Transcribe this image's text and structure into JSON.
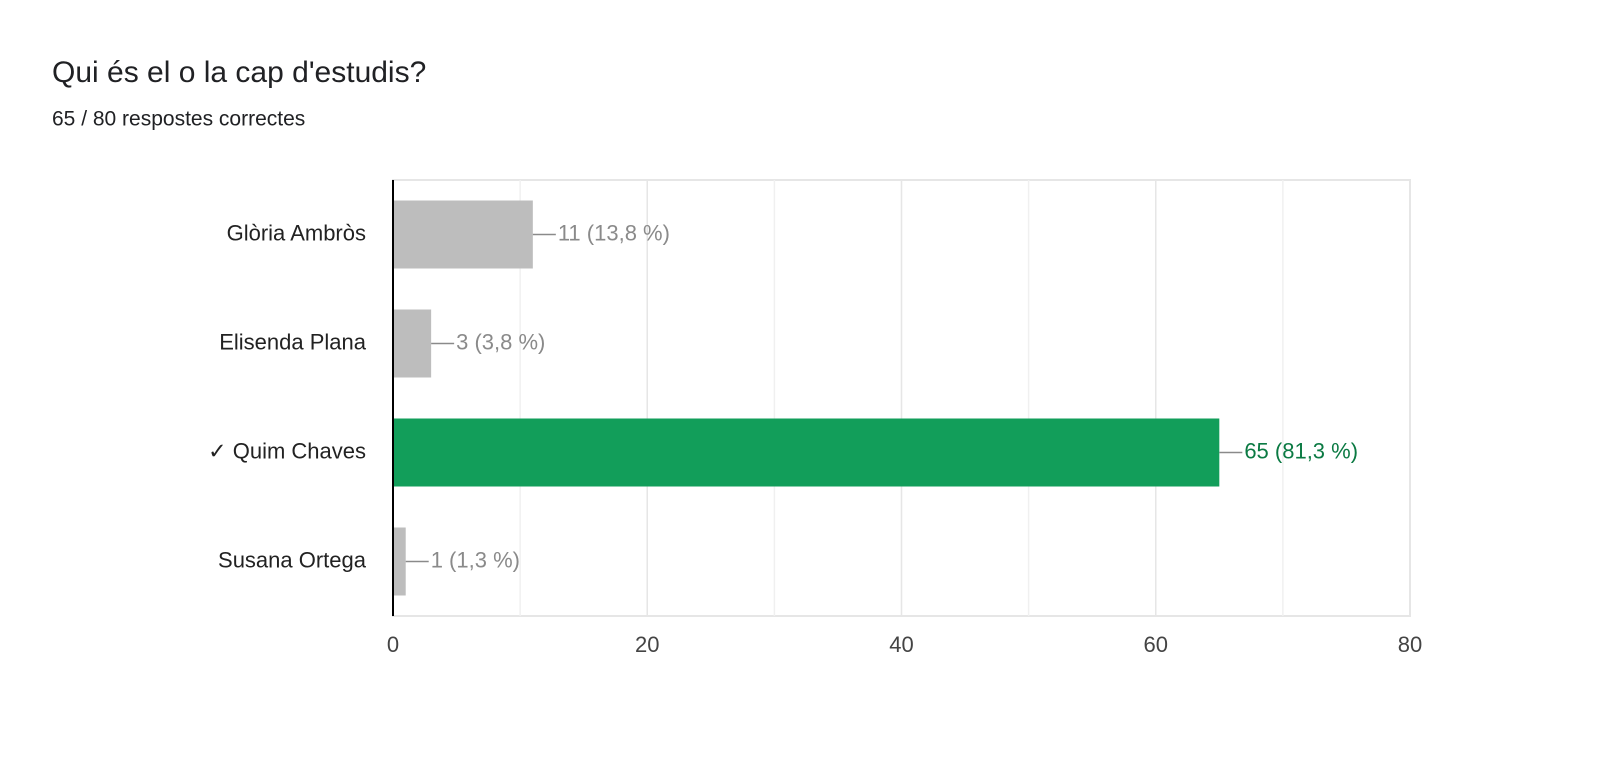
{
  "chart_data": {
    "type": "bar",
    "orientation": "horizontal",
    "title": "Qui és el o la cap d'estudis?",
    "subtitle": "65 / 80 respostes correctes",
    "categories": [
      "Glòria Ambròs",
      "Elisenda Plana",
      "✓ Quim Chaves",
      "Susana Ortega"
    ],
    "values": [
      11,
      3,
      65,
      1
    ],
    "value_labels": [
      "11 (13,8 %)",
      "3 (3,8 %)",
      "65 (81,3 %)",
      "1 (1,3 %)"
    ],
    "colors": [
      "#bdbdbd",
      "#bdbdbd",
      "#129e5a",
      "#bdbdbd"
    ],
    "label_colors": [
      "#8a8a8a",
      "#8a8a8a",
      "#0b7a43",
      "#8a8a8a"
    ],
    "xlim": [
      0,
      80
    ],
    "xticks": [
      0,
      20,
      40,
      60,
      80
    ],
    "minor_gridlines": [
      10,
      30,
      50,
      70
    ],
    "grid": true
  }
}
